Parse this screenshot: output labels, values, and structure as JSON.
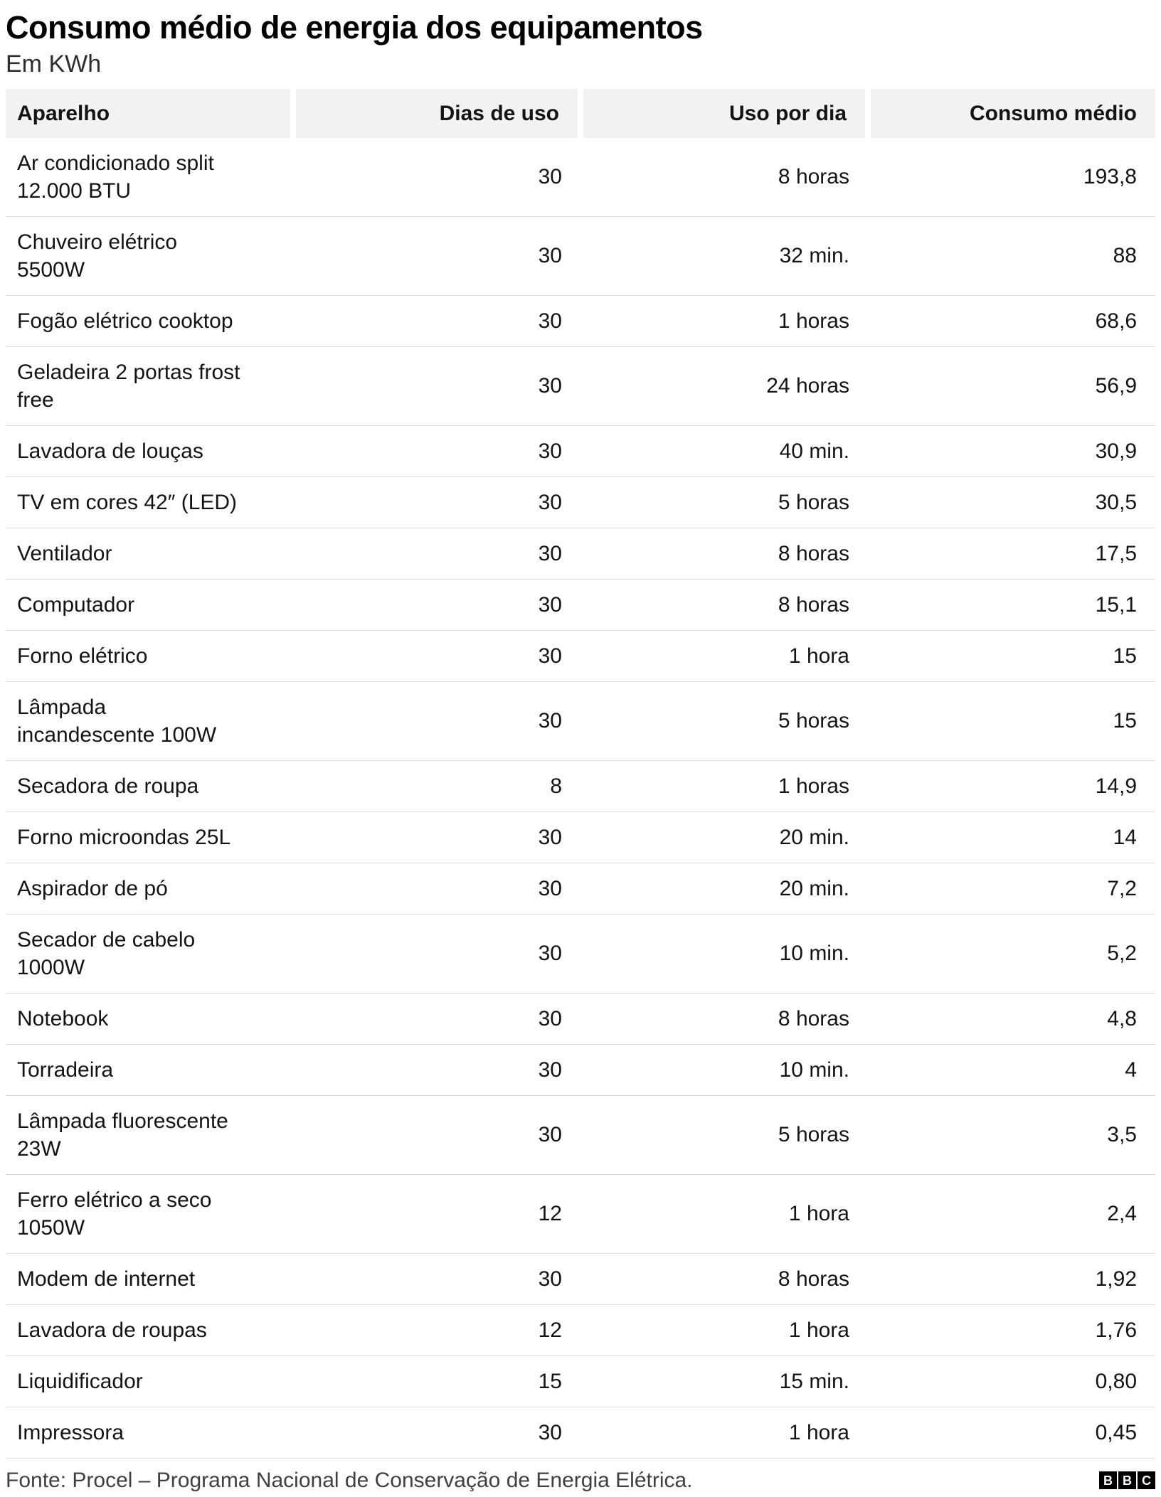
{
  "header": {
    "title": "Consumo médio de energia dos equipamentos",
    "subtitle": "Em KWh"
  },
  "chart_data": {
    "type": "table",
    "title": "Consumo médio de energia dos equipamentos",
    "subtitle": "Em KWh",
    "unit": "KWh",
    "columns": [
      "Aparelho",
      "Dias de uso",
      "Uso por dia",
      "Consumo médio"
    ],
    "rows": [
      [
        "Ar condicionado split 12.000 BTU",
        "30",
        "8 horas",
        "193,8"
      ],
      [
        "Chuveiro elétrico 5500W",
        "30",
        "32 min.",
        "88"
      ],
      [
        "Fogão elétrico cooktop",
        "30",
        "1 horas",
        "68,6"
      ],
      [
        "Geladeira 2 portas frost free",
        "30",
        "24 horas",
        "56,9"
      ],
      [
        "Lavadora de louças",
        "30",
        "40 min.",
        "30,9"
      ],
      [
        "TV em cores 42″ (LED)",
        "30",
        "5 horas",
        "30,5"
      ],
      [
        "Ventilador",
        "30",
        "8 horas",
        "17,5"
      ],
      [
        "Computador",
        "30",
        "8 horas",
        "15,1"
      ],
      [
        "Forno elétrico",
        "30",
        "1 hora",
        "15"
      ],
      [
        "Lâmpada incandescente 100W",
        "30",
        "5 horas",
        "15"
      ],
      [
        "Secadora de roupa",
        "8",
        "1 horas",
        "14,9"
      ],
      [
        "Forno microondas 25L",
        "30",
        "20 min.",
        "14"
      ],
      [
        "Aspirador de pó",
        "30",
        "20 min.",
        "7,2"
      ],
      [
        "Secador de cabelo 1000W",
        "30",
        "10 min.",
        "5,2"
      ],
      [
        "Notebook",
        "30",
        "8 horas",
        "4,8"
      ],
      [
        "Torradeira",
        "30",
        "10 min.",
        "4"
      ],
      [
        "Lâmpada fluorescente 23W",
        "30",
        "5 horas",
        "3,5"
      ],
      [
        "Ferro elétrico a seco 1050W",
        "12",
        "1 hora",
        "2,4"
      ],
      [
        "Modem de internet",
        "30",
        "8 horas",
        "1,92"
      ],
      [
        "Lavadora de roupas",
        "12",
        "1 hora",
        "1,76"
      ],
      [
        "Liquidificador",
        "15",
        "15 min.",
        "0,80"
      ],
      [
        "Impressora",
        "30",
        "1 hora",
        "0,45"
      ]
    ],
    "source": "Fonte: Procel – Programa Nacional de Conservação de Energia Elétrica."
  },
  "footer": {
    "source": "Fonte: Procel – Programa Nacional de Conservação de Energia Elétrica.",
    "logo_letters": [
      "B",
      "B",
      "C"
    ]
  },
  "colors": {
    "header_bg": "#f2f2f2",
    "row_border": "#dcdcdc",
    "text": "#141414",
    "source_text": "#404040",
    "logo_bg": "#000000",
    "logo_text": "#ffffff"
  }
}
